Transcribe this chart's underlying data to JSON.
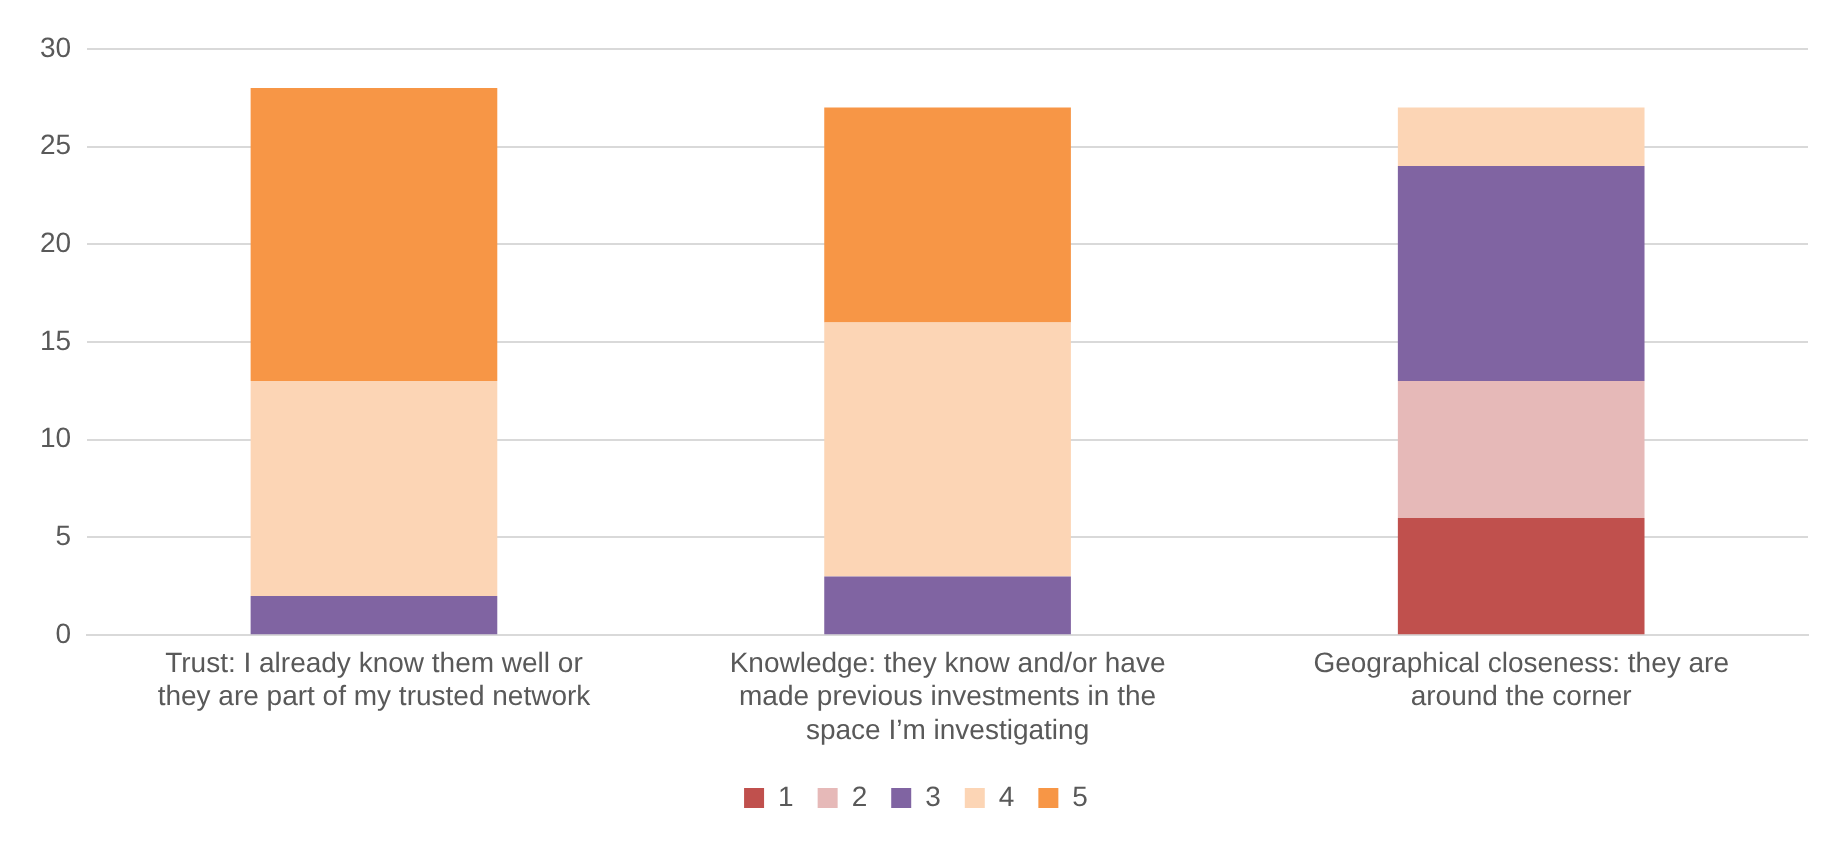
{
  "chart_data": {
    "type": "bar",
    "stacked": true,
    "categories": [
      "Trust: I already know them well or they are part of my trusted network",
      "Knowledge: they know and/or have made previous investments in the space I’m investigating",
      "Geographical closeness: they are around the corner"
    ],
    "series": [
      {
        "name": "1",
        "color": "#c0504d",
        "values": [
          0,
          0,
          6
        ]
      },
      {
        "name": "2",
        "color": "#e6b9b8",
        "values": [
          0,
          0,
          7
        ]
      },
      {
        "name": "3",
        "color": "#8064a2",
        "values": [
          2,
          3,
          11
        ]
      },
      {
        "name": "4",
        "color": "#fcd5b5",
        "values": [
          11,
          13,
          3
        ]
      },
      {
        "name": "5",
        "color": "#f79646",
        "values": [
          15,
          11,
          0
        ]
      }
    ],
    "ylim": [
      0,
      30
    ],
    "yticks": [
      0,
      5,
      10,
      15,
      20,
      25,
      30
    ],
    "grid": "y",
    "legend": "bottom"
  }
}
